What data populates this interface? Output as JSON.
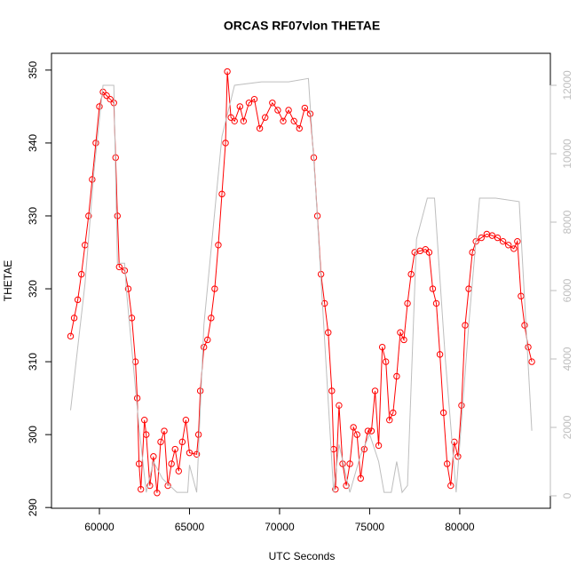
{
  "chart_data": {
    "type": "scatter",
    "title": "ORCAS RF07vlon THETAE",
    "xlabel": "UTC Seconds",
    "ylabel": "THETAE",
    "xlim": [
      57340,
      85030
    ],
    "ylim": [
      289.9,
      352.3
    ],
    "y2lim": [
      -364,
      12935
    ],
    "xticks": [
      60000,
      65000,
      70000,
      75000,
      80000
    ],
    "yticks": [
      290,
      300,
      310,
      320,
      330,
      340,
      350
    ],
    "y2ticks": [
      0,
      2000,
      4000,
      6000,
      8000,
      10000,
      12000
    ],
    "series": [
      {
        "color": "#ff0000",
        "marker": "circle",
        "line": true,
        "x": [
          58400,
          58600,
          58800,
          59000,
          59200,
          59400,
          59600,
          59800,
          60000,
          60200,
          60400,
          60600,
          60800,
          60900,
          61000,
          61100,
          61400,
          61600,
          61800,
          62000,
          62100,
          62200,
          62300,
          62500,
          62600,
          62800,
          63000,
          63200,
          63400,
          63600,
          63800,
          64000,
          64200,
          64400,
          64600,
          64800,
          65000,
          65400,
          65500,
          65600,
          65800,
          66000,
          66200,
          66400,
          66600,
          66800,
          67000,
          67100,
          67300,
          67500,
          67800,
          68000,
          68300,
          68600,
          68900,
          69200,
          69600,
          69900,
          70200,
          70500,
          70800,
          71100,
          71400,
          71700,
          71900,
          72100,
          72300,
          72500,
          72700,
          72900,
          73000,
          73100,
          73300,
          73500,
          73700,
          73900,
          74100,
          74300,
          74500,
          74700,
          74900,
          75100,
          75300,
          75500,
          75700,
          75900,
          76100,
          76300,
          76500,
          76700,
          76900,
          77100,
          77300,
          77500,
          77800,
          78100,
          78300,
          78500,
          78700,
          78900,
          79100,
          79300,
          79500,
          79700,
          79900,
          80100,
          80300,
          80500,
          80700,
          80900,
          81200,
          81500,
          81800,
          82100,
          82400,
          82700,
          83000,
          83200,
          83400,
          83600,
          83800,
          84000
        ],
        "values": [
          313.5,
          316,
          318.5,
          322,
          326,
          330,
          335,
          340,
          345,
          347,
          346.5,
          346,
          345.5,
          338,
          330,
          323,
          322.5,
          320,
          316,
          310,
          305,
          296,
          292.5,
          302,
          300,
          293,
          297,
          292,
          299,
          300.5,
          293,
          296,
          298,
          295,
          299,
          302,
          297.5,
          297.3,
          300,
          306,
          312,
          313,
          316,
          320,
          326,
          333,
          340,
          349.8,
          343.5,
          343,
          345,
          343,
          345.5,
          346,
          342,
          343.5,
          345.5,
          344.5,
          343,
          344.5,
          343,
          342,
          344.8,
          344,
          338,
          330,
          322,
          318,
          314,
          306,
          298,
          292.5,
          304,
          296,
          293,
          296,
          301,
          300,
          294,
          298,
          300.5,
          300.5,
          306,
          298.5,
          312,
          310,
          302,
          303,
          308,
          314,
          313,
          318,
          322,
          325,
          325.2,
          325.4,
          325,
          320,
          318,
          311,
          303,
          296,
          293,
          299,
          297,
          304,
          315,
          320,
          325,
          326.5,
          327,
          327.5,
          327.3,
          327,
          326.5,
          326,
          325.5,
          326.5,
          319,
          315,
          312,
          310
        ]
      },
      {
        "color": "#bebebe",
        "axis": "y2",
        "marker": "none",
        "line": true,
        "x": [
          58400,
          59200,
          59700,
          60200,
          60800,
          61000,
          61400,
          61500,
          62200,
          62600,
          63000,
          63500,
          64300,
          64900,
          65000,
          65400,
          65800,
          66800,
          67500,
          69000,
          70500,
          71600,
          72000,
          73000,
          73300,
          73900,
          74500,
          75000,
          75500,
          75800,
          76200,
          76500,
          76800,
          77100,
          77600,
          78200,
          78600,
          79200,
          79800,
          80500,
          81100,
          82000,
          83300,
          84000
        ],
        "values": [
          2500,
          6200,
          9500,
          12000,
          12000,
          6800,
          6800,
          6000,
          2000,
          100,
          1000,
          500,
          100,
          100,
          900,
          100,
          5000,
          10500,
          12000,
          12100,
          12100,
          12200,
          9000,
          100,
          1500,
          100,
          1200,
          1800,
          1000,
          100,
          100,
          1000,
          100,
          300,
          7500,
          8700,
          8700,
          4000,
          100,
          5000,
          8700,
          8700,
          8600,
          1900
        ]
      }
    ]
  }
}
